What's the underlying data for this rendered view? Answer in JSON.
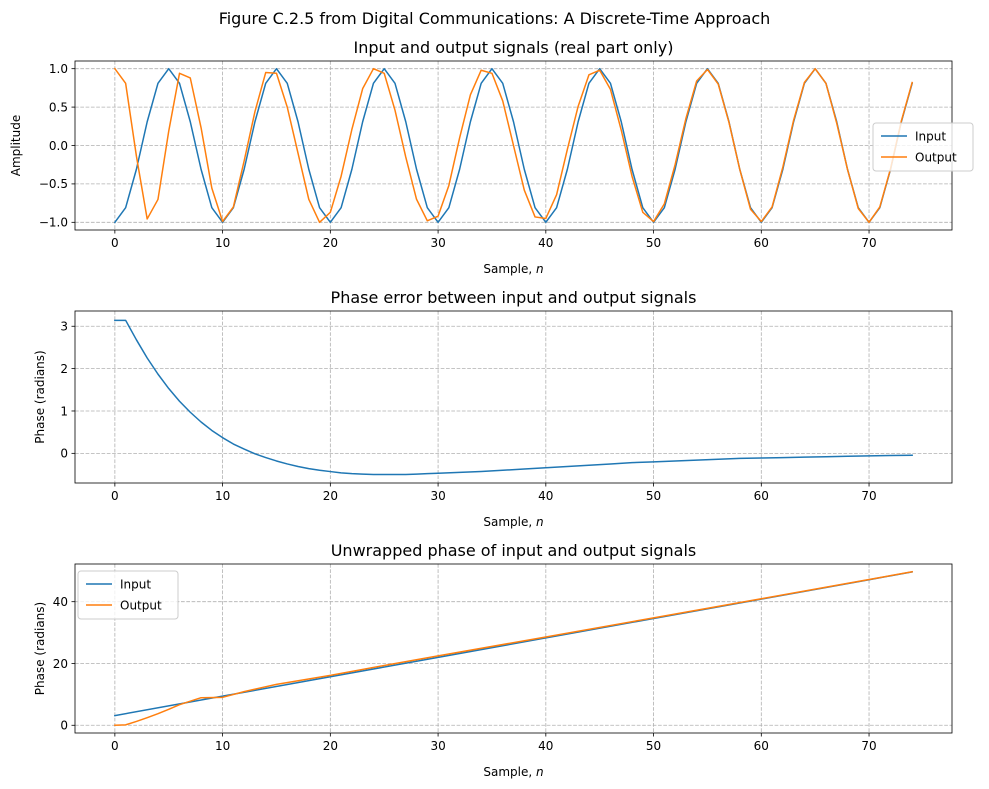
{
  "figure": {
    "suptitle": "Figure C.2.5 from Digital Communications: A Discrete-Time Approach"
  },
  "colors": {
    "input": "#1f77b4",
    "output": "#ff7f0e"
  },
  "chart_data": [
    {
      "type": "line",
      "title": "Input and output signals (real part only)",
      "xlabel_prefix": "Sample, ",
      "xlabel_var": "n",
      "ylabel": "Amplitude",
      "xlim": [
        -3.7,
        77.7
      ],
      "ylim": [
        -1.1,
        1.1
      ],
      "xticks": [
        0,
        10,
        20,
        30,
        40,
        50,
        60,
        70
      ],
      "xtick_labels": [
        "0",
        "10",
        "20",
        "30",
        "40",
        "50",
        "60",
        "70"
      ],
      "yticks": [
        -1.0,
        -0.5,
        0.0,
        0.5,
        1.0
      ],
      "ytick_labels": [
        "−1.0",
        "−0.5",
        "0.0",
        "0.5",
        "1.0"
      ],
      "grid": true,
      "legend": "center-right",
      "series": [
        {
          "name": "Input",
          "color": "#1f77b4",
          "x_start": 0,
          "x_step": 1,
          "values": [
            -1,
            -0.809,
            -0.309,
            0.309,
            0.809,
            1,
            0.809,
            0.309,
            -0.309,
            -0.809,
            -1,
            -0.809,
            -0.309,
            0.309,
            0.809,
            1,
            0.809,
            0.309,
            -0.309,
            -0.809,
            -1,
            -0.809,
            -0.309,
            0.309,
            0.809,
            1,
            0.809,
            0.309,
            -0.309,
            -0.809,
            -1,
            -0.809,
            -0.309,
            0.309,
            0.809,
            1,
            0.809,
            0.309,
            -0.309,
            -0.809,
            -1,
            -0.809,
            -0.309,
            0.309,
            0.809,
            1,
            0.809,
            0.309,
            -0.309,
            -0.809,
            -1,
            -0.809,
            -0.309,
            0.309,
            0.809,
            1,
            0.809,
            0.309,
            -0.309,
            -0.809,
            -1,
            -0.809,
            -0.309,
            0.309,
            0.809,
            1,
            0.809,
            0.309,
            -0.309,
            -0.809,
            -1,
            -0.809,
            -0.309,
            0.309,
            0.809
          ]
        },
        {
          "name": "Output",
          "color": "#ff7f0e",
          "x_start": 0,
          "x_step": 1,
          "values": [
            1,
            0.809,
            -0.138,
            -0.956,
            -0.702,
            0.187,
            0.94,
            0.879,
            0.232,
            -0.555,
            -0.989,
            -0.8,
            -0.2,
            0.44,
            0.95,
            0.94,
            0.5,
            -0.1,
            -0.7,
            -1,
            -0.87,
            -0.4,
            0.21,
            0.74,
            1,
            0.94,
            0.46,
            -0.15,
            -0.7,
            -0.98,
            -0.92,
            -0.52,
            0.1,
            0.66,
            0.98,
            0.94,
            0.58,
            0,
            -0.58,
            -0.93,
            -0.95,
            -0.64,
            -0.05,
            0.51,
            0.92,
            0.98,
            0.73,
            0.2,
            -0.4,
            -0.87,
            -0.99,
            -0.76,
            -0.25,
            0.35,
            0.84,
            0.99,
            0.8,
            0.3,
            -0.31,
            -0.83,
            -0.99,
            -0.8,
            -0.28,
            0.33,
            0.82,
            1,
            0.81,
            0.29,
            -0.31,
            -0.82,
            -1,
            -0.8,
            -0.3,
            0.32,
            0.82
          ]
        }
      ]
    },
    {
      "type": "line",
      "title": "Phase error between input and output signals",
      "xlabel_prefix": "Sample, ",
      "xlabel_var": "n",
      "ylabel": "Phase (radians)",
      "xlim": [
        -3.7,
        77.7
      ],
      "ylim": [
        -0.7,
        3.36
      ],
      "xticks": [
        0,
        10,
        20,
        30,
        40,
        50,
        60,
        70
      ],
      "xtick_labels": [
        "0",
        "10",
        "20",
        "30",
        "40",
        "50",
        "60",
        "70"
      ],
      "yticks": [
        0,
        1,
        2,
        3
      ],
      "ytick_labels": [
        "0",
        "1",
        "2",
        "3"
      ],
      "grid": true,
      "series": [
        {
          "name": "",
          "color": "#1f77b4",
          "x": [
            0,
            1,
            2,
            3,
            4,
            5,
            6,
            7,
            8,
            9,
            10,
            11,
            12,
            13,
            14,
            15,
            16,
            17,
            18,
            19,
            20,
            21,
            22,
            23,
            24,
            25,
            26,
            27,
            28,
            29,
            30,
            32,
            34,
            36,
            38,
            40,
            42,
            44,
            46,
            48,
            50,
            52,
            54,
            56,
            58,
            60,
            62,
            64,
            66,
            68,
            70,
            72,
            74
          ],
          "values": [
            3.14,
            3.14,
            2.68,
            2.25,
            1.87,
            1.53,
            1.23,
            0.97,
            0.74,
            0.54,
            0.37,
            0.22,
            0.1,
            -0.01,
            -0.1,
            -0.18,
            -0.25,
            -0.31,
            -0.36,
            -0.4,
            -0.43,
            -0.46,
            -0.48,
            -0.49,
            -0.5,
            -0.5,
            -0.5,
            -0.5,
            -0.49,
            -0.48,
            -0.47,
            -0.45,
            -0.43,
            -0.4,
            -0.37,
            -0.34,
            -0.31,
            -0.28,
            -0.25,
            -0.22,
            -0.2,
            -0.18,
            -0.16,
            -0.14,
            -0.12,
            -0.11,
            -0.1,
            -0.09,
            -0.08,
            -0.07,
            -0.06,
            -0.05,
            -0.045
          ]
        }
      ]
    },
    {
      "type": "line",
      "title": "Unwrapped phase of input and output signals",
      "xlabel_prefix": "Sample, ",
      "xlabel_var": "n",
      "ylabel": "Phase (radians)",
      "xlim": [
        -3.7,
        77.7
      ],
      "ylim": [
        -2.5,
        52.2
      ],
      "xticks": [
        0,
        10,
        20,
        30,
        40,
        50,
        60,
        70
      ],
      "xtick_labels": [
        "0",
        "10",
        "20",
        "30",
        "40",
        "50",
        "60",
        "70"
      ],
      "yticks": [
        0,
        20,
        40
      ],
      "ytick_labels": [
        "0",
        "20",
        "40"
      ],
      "grid": true,
      "legend": "upper-left",
      "series": [
        {
          "name": "Input",
          "color": "#1f77b4",
          "x": [
            0,
            10,
            20,
            30,
            40,
            50,
            60,
            70,
            74
          ],
          "values": [
            3.14,
            9.42,
            15.71,
            21.99,
            28.27,
            34.56,
            40.84,
            47.12,
            49.64
          ]
        },
        {
          "name": "Output",
          "color": "#ff7f0e",
          "x": [
            0,
            1,
            2,
            3,
            4,
            5,
            6,
            8,
            10,
            12,
            15,
            20,
            25,
            30,
            40,
            50,
            60,
            70,
            74
          ],
          "values": [
            0,
            0.14,
            1.24,
            2.46,
            3.76,
            5.16,
            6.66,
            8.92,
            9.05,
            10.89,
            13.24,
            16.14,
            19.35,
            22.46,
            28.58,
            34.76,
            40.95,
            47.18,
            49.69
          ]
        }
      ]
    }
  ]
}
